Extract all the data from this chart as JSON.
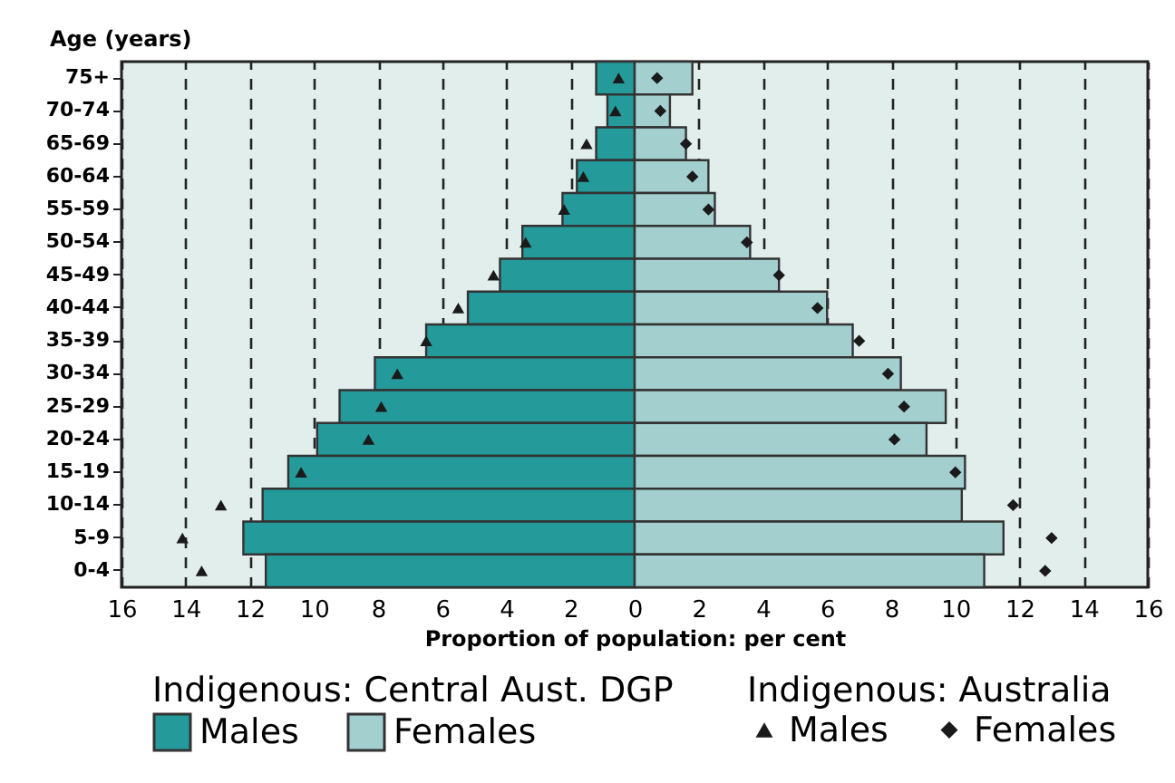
{
  "chart_data": {
    "type": "bar",
    "orientation": "horizontal",
    "xlabel": "Proportion of population: per cent",
    "ylabel": "Age (years)",
    "categories": [
      "75+",
      "70-74",
      "65-69",
      "60-64",
      "55-59",
      "50-54",
      "45-49",
      "40-44",
      "35-39",
      "30-34",
      "25-29",
      "20-24",
      "15-19",
      "10-14",
      "5-9",
      "0-4"
    ],
    "series": [
      {
        "name": "Males",
        "color": "#259a9b",
        "values": [
          -1.2,
          -0.85,
          -1.2,
          -1.8,
          -2.25,
          -3.5,
          -4.2,
          -5.2,
          -6.5,
          -8.1,
          -9.2,
          -9.9,
          -10.8,
          -11.6,
          -12.2,
          -11.5
        ]
      },
      {
        "name": "Females",
        "color": "#a3cfcf",
        "values": [
          1.8,
          1.1,
          1.6,
          2.3,
          2.5,
          3.6,
          4.5,
          6.0,
          6.8,
          8.3,
          9.7,
          9.1,
          10.3,
          10.2,
          11.5,
          10.9
        ]
      },
      {
        "name": "Males",
        "type": "scatter",
        "color": "#1a1a1a",
        "marker": "triangle",
        "values": [
          -0.5,
          -0.6,
          -1.5,
          -1.6,
          -2.2,
          -3.4,
          -4.4,
          -5.5,
          -6.5,
          -7.4,
          -7.9,
          -8.3,
          -10.4,
          -12.9,
          -14.1,
          -13.5
        ]
      },
      {
        "name": "Females",
        "type": "scatter",
        "color": "#1a1a1a",
        "marker": "diamond",
        "values": [
          0.7,
          0.8,
          1.6,
          1.8,
          2.3,
          3.5,
          4.5,
          5.7,
          7.0,
          7.9,
          8.4,
          8.1,
          10.0,
          11.8,
          13.0,
          12.8
        ]
      }
    ],
    "xlim": [
      -16,
      16
    ],
    "xticks": [
      {
        "value": -16,
        "label": "16"
      },
      {
        "value": -14,
        "label": "14"
      },
      {
        "value": -12,
        "label": "12"
      },
      {
        "value": -10,
        "label": "10"
      },
      {
        "value": -8,
        "label": "8"
      },
      {
        "value": -6,
        "label": "6"
      },
      {
        "value": -4,
        "label": "4"
      },
      {
        "value": -2,
        "label": "2"
      },
      0,
      2,
      4,
      6,
      8,
      10,
      12,
      14,
      16
    ],
    "grid": "x",
    "legend": "bottom",
    "stacked": true,
    "annotations": [
      "Indigenous: Central Aust. DGP",
      "Indigenous: Australia"
    ]
  }
}
